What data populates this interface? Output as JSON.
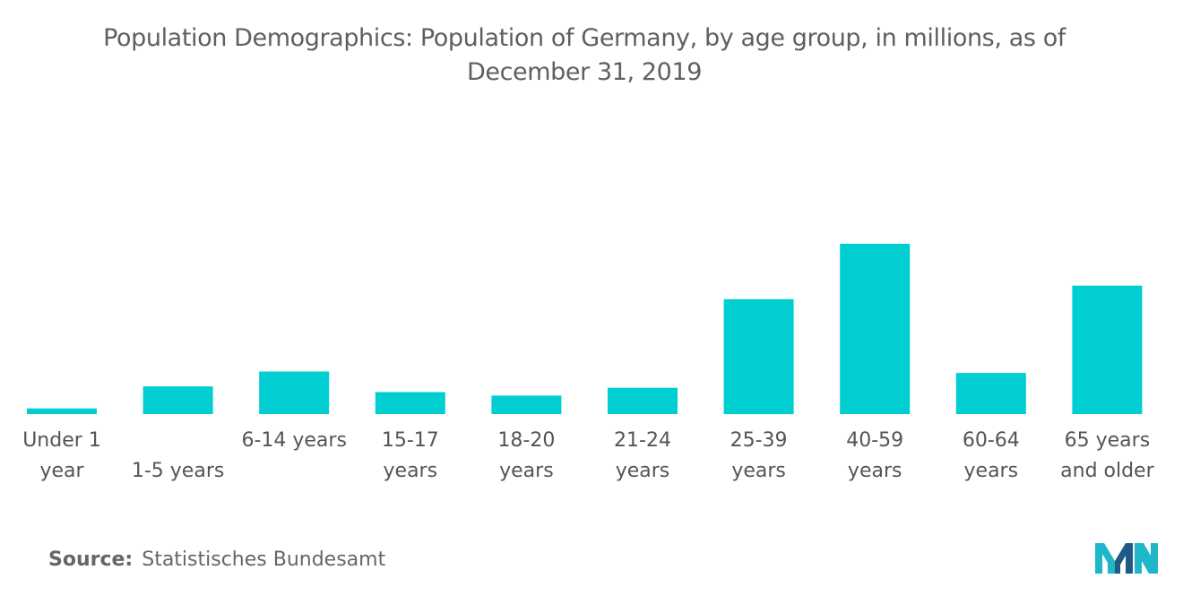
{
  "chart_data": {
    "type": "bar",
    "title_lines": [
      "Population Demographics: Population of Germany, by age group, in millions, as of",
      "December 31, 2019"
    ],
    "categories": [
      [
        "Under 1",
        "year"
      ],
      [
        "",
        "1-5 years"
      ],
      [
        "6-14 years",
        ""
      ],
      [
        "15-17",
        "years"
      ],
      [
        "18-20",
        "years"
      ],
      [
        "21-24",
        "years"
      ],
      [
        "25-39",
        "years"
      ],
      [
        "40-59",
        "years"
      ],
      [
        "60-64",
        "years"
      ],
      [
        "65 years",
        "and older"
      ]
    ],
    "values": [
      0.8,
      3.9,
      6.0,
      3.1,
      2.6,
      3.7,
      16.2,
      24.0,
      5.8,
      18.1
    ],
    "ylim": [
      0,
      24
    ],
    "bar_color": "#00CED1",
    "grid": false,
    "legend": "none"
  },
  "source": {
    "label": "Source:",
    "text": "Statistisches Bundesamt"
  },
  "logo": {
    "icon": "mordor-intelligence-logo",
    "colors": [
      "#1FB6C9",
      "#1E5A84"
    ]
  }
}
